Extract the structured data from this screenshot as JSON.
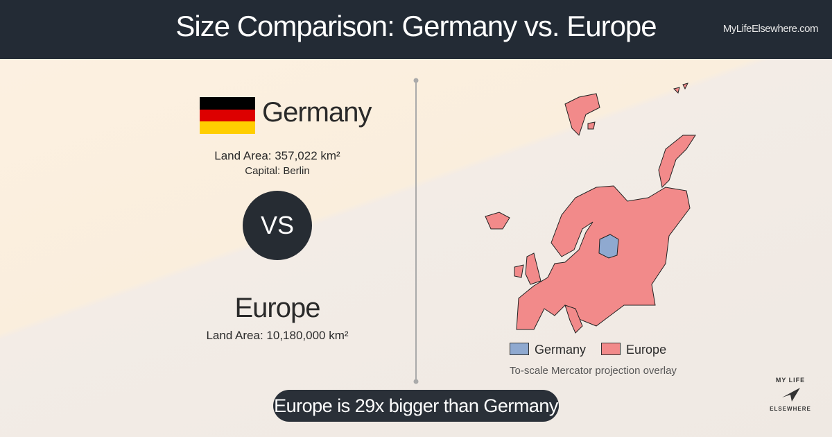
{
  "header": {
    "title": "Size Comparison: Germany vs. Europe",
    "site": "MyLifeElsewhere.com"
  },
  "left": {
    "country": "Germany",
    "country_area": "Land Area: 357,022 km²",
    "capital": "Capital: Berlin",
    "vs": "VS",
    "region": "Europe",
    "region_area": "Land Area: 10,180,000 km²"
  },
  "legend": [
    {
      "label": "Germany",
      "color": "#8fa9d0"
    },
    {
      "label": "Europe",
      "color": "#f28a8a"
    }
  ],
  "caption": "To-scale Mercator projection overlay",
  "banner": "Europe is 29x bigger than Germany",
  "logo": {
    "top": "MY LIFE",
    "bottom": "ELSEWHERE"
  }
}
